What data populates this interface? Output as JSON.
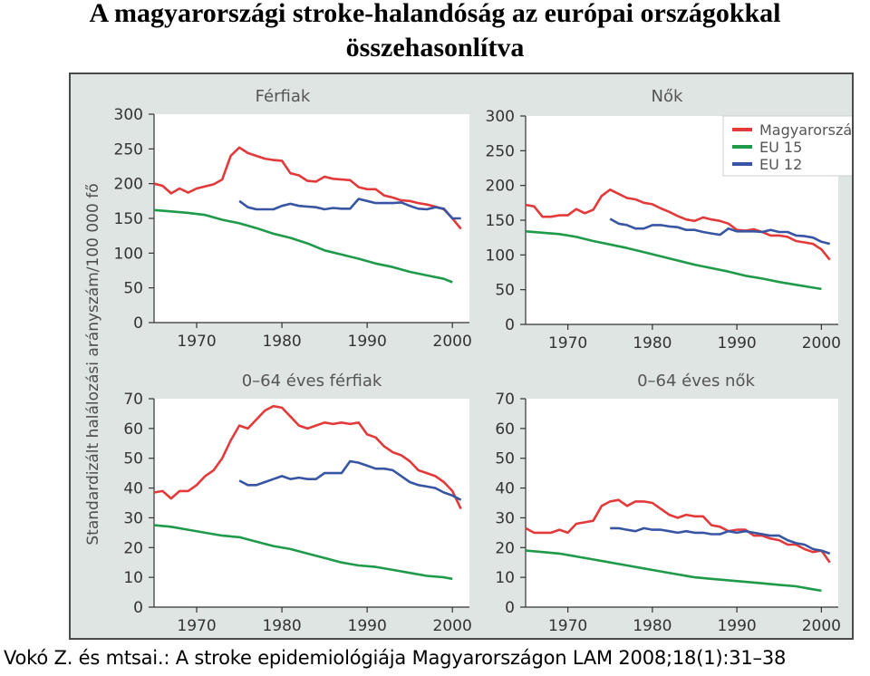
{
  "title": {
    "line1": "A magyarországi stroke-halandóság az európai országokkal",
    "line2": "összehasonlítva"
  },
  "citation": "Vokó Z. és mtsai.: A stroke epidemiológiája Magyarországon LAM 2008;18(1):31–38",
  "colors": {
    "Magyarország": "#e23a3a",
    "EU 15": "#1f9a4a",
    "EU 12": "#3855a3",
    "panel_bg": "#dfe5e2",
    "plot_bg": "#ffffff"
  },
  "chart_data": [
    {
      "type": "line",
      "title": "Férfiak",
      "ylabel": "Standardizált halálozási arányszám/100 000 fő",
      "xlim": [
        1965,
        2002
      ],
      "ylim": [
        0,
        300
      ],
      "xticks": [
        1970,
        1980,
        1990,
        2000
      ],
      "yticks": [
        0,
        50,
        100,
        150,
        200,
        250,
        300
      ],
      "grid": false,
      "series": [
        {
          "name": "Magyarország",
          "x": [
            1965,
            1966,
            1967,
            1968,
            1969,
            1970,
            1971,
            1972,
            1973,
            1974,
            1975,
            1976,
            1977,
            1978,
            1979,
            1980,
            1981,
            1982,
            1983,
            1984,
            1985,
            1986,
            1987,
            1988,
            1989,
            1990,
            1991,
            1992,
            1993,
            1994,
            1995,
            1996,
            1997,
            1998,
            1999,
            2000,
            2001
          ],
          "values": [
            200,
            197,
            186,
            193,
            187,
            193,
            196,
            199,
            206,
            240,
            252,
            244,
            240,
            236,
            234,
            233,
            215,
            212,
            204,
            203,
            210,
            207,
            206,
            205,
            195,
            192,
            192,
            183,
            180,
            176,
            175,
            172,
            170,
            167,
            163,
            150,
            135
          ]
        },
        {
          "name": "EU 15",
          "x": [
            1965,
            1967,
            1969,
            1971,
            1973,
            1975,
            1977,
            1979,
            1981,
            1983,
            1985,
            1987,
            1989,
            1991,
            1993,
            1995,
            1997,
            1999,
            2000
          ],
          "values": [
            162,
            160,
            158,
            155,
            148,
            143,
            136,
            128,
            122,
            114,
            104,
            98,
            92,
            85,
            80,
            73,
            68,
            63,
            58
          ]
        },
        {
          "name": "EU 12",
          "x": [
            1975,
            1976,
            1977,
            1978,
            1979,
            1980,
            1981,
            1982,
            1983,
            1984,
            1985,
            1986,
            1987,
            1988,
            1989,
            1990,
            1991,
            1992,
            1993,
            1994,
            1995,
            1996,
            1997,
            1998,
            1999,
            2000,
            2001
          ],
          "values": [
            175,
            166,
            163,
            163,
            163,
            168,
            171,
            168,
            167,
            166,
            163,
            165,
            164,
            164,
            178,
            175,
            172,
            172,
            172,
            173,
            168,
            164,
            163,
            166,
            164,
            150,
            150
          ]
        }
      ]
    },
    {
      "type": "line",
      "title": "Nők",
      "xlim": [
        1965,
        2002
      ],
      "ylim": [
        0,
        300
      ],
      "xticks": [
        1970,
        1980,
        1990,
        2000
      ],
      "yticks": [
        0,
        50,
        100,
        150,
        200,
        250,
        300
      ],
      "legend": "top-right",
      "series": [
        {
          "name": "Magyarország",
          "x": [
            1965,
            1966,
            1967,
            1968,
            1969,
            1970,
            1971,
            1972,
            1973,
            1974,
            1975,
            1976,
            1977,
            1978,
            1979,
            1980,
            1981,
            1982,
            1983,
            1984,
            1985,
            1986,
            1987,
            1988,
            1989,
            1990,
            1991,
            1992,
            1993,
            1994,
            1995,
            1996,
            1997,
            1998,
            1999,
            2000,
            2001
          ],
          "values": [
            172,
            170,
            155,
            155,
            157,
            157,
            166,
            160,
            165,
            185,
            194,
            188,
            182,
            180,
            175,
            173,
            167,
            162,
            156,
            151,
            149,
            154,
            151,
            149,
            145,
            136,
            135,
            137,
            133,
            128,
            128,
            126,
            120,
            118,
            116,
            108,
            93
          ]
        },
        {
          "name": "EU 15",
          "x": [
            1965,
            1967,
            1969,
            1971,
            1973,
            1975,
            1977,
            1979,
            1981,
            1983,
            1985,
            1987,
            1989,
            1991,
            1993,
            1995,
            1997,
            1999,
            2000
          ],
          "values": [
            134,
            132,
            130,
            126,
            120,
            115,
            110,
            104,
            98,
            92,
            86,
            81,
            76,
            70,
            66,
            61,
            57,
            53,
            51
          ]
        },
        {
          "name": "EU 12",
          "x": [
            1975,
            1976,
            1977,
            1978,
            1979,
            1980,
            1981,
            1982,
            1983,
            1984,
            1985,
            1986,
            1987,
            1988,
            1989,
            1990,
            1991,
            1992,
            1993,
            1994,
            1995,
            1996,
            1997,
            1998,
            1999,
            2000,
            2001
          ],
          "values": [
            152,
            145,
            143,
            138,
            138,
            143,
            143,
            141,
            140,
            136,
            136,
            133,
            131,
            129,
            138,
            134,
            134,
            134,
            133,
            136,
            133,
            133,
            128,
            127,
            125,
            119,
            116
          ]
        }
      ]
    },
    {
      "type": "line",
      "title": "0–64 éves férfiak",
      "xlim": [
        1965,
        2002
      ],
      "ylim": [
        0,
        70
      ],
      "xticks": [
        1970,
        1980,
        1990,
        2000
      ],
      "yticks": [
        0,
        10,
        20,
        30,
        40,
        50,
        60,
        70
      ],
      "series": [
        {
          "name": "Magyarország",
          "x": [
            1965,
            1966,
            1967,
            1968,
            1969,
            1970,
            1971,
            1972,
            1973,
            1974,
            1975,
            1976,
            1977,
            1978,
            1979,
            1980,
            1981,
            1982,
            1983,
            1984,
            1985,
            1986,
            1987,
            1988,
            1989,
            1990,
            1991,
            1992,
            1993,
            1994,
            1995,
            1996,
            1997,
            1998,
            1999,
            2000,
            2001
          ],
          "values": [
            38.5,
            39,
            36.5,
            39,
            39,
            41,
            44,
            46,
            50,
            56,
            61,
            60,
            63,
            66,
            67.5,
            67,
            64,
            61,
            60,
            61,
            62,
            61.5,
            62,
            61.5,
            62,
            58,
            57,
            54,
            52,
            51,
            49,
            46,
            45,
            44,
            42,
            39,
            33
          ]
        },
        {
          "name": "EU 15",
          "x": [
            1965,
            1967,
            1969,
            1971,
            1973,
            1975,
            1977,
            1979,
            1981,
            1983,
            1985,
            1987,
            1989,
            1991,
            1993,
            1995,
            1997,
            1999,
            2000
          ],
          "values": [
            27.5,
            27,
            26,
            25,
            24,
            23.5,
            22,
            20.5,
            19.5,
            18,
            16.5,
            15,
            14,
            13.5,
            12.5,
            11.5,
            10.5,
            10,
            9.5
          ]
        },
        {
          "name": "EU 12",
          "x": [
            1975,
            1976,
            1977,
            1978,
            1979,
            1980,
            1981,
            1982,
            1983,
            1984,
            1985,
            1986,
            1987,
            1988,
            1989,
            1990,
            1991,
            1992,
            1993,
            1994,
            1995,
            1996,
            1997,
            1998,
            1999,
            2000,
            2001
          ],
          "values": [
            42.5,
            41,
            41,
            42,
            43,
            44,
            43,
            43.5,
            43,
            43,
            45,
            45,
            45,
            49,
            48.5,
            47.5,
            46.5,
            46.5,
            46,
            44,
            42,
            41,
            40.5,
            40,
            38.5,
            37.5,
            36
          ]
        }
      ]
    },
    {
      "type": "line",
      "title": "0–64 éves nők",
      "xlim": [
        1965,
        2002
      ],
      "ylim": [
        0,
        70
      ],
      "xticks": [
        1970,
        1980,
        1990,
        2000
      ],
      "yticks": [
        0,
        10,
        20,
        30,
        40,
        50,
        60,
        70
      ],
      "series": [
        {
          "name": "Magyarország",
          "x": [
            1965,
            1966,
            1967,
            1968,
            1969,
            1970,
            1971,
            1972,
            1973,
            1974,
            1975,
            1976,
            1977,
            1978,
            1979,
            1980,
            1981,
            1982,
            1983,
            1984,
            1985,
            1986,
            1987,
            1988,
            1989,
            1990,
            1991,
            1992,
            1993,
            1994,
            1995,
            1996,
            1997,
            1998,
            1999,
            2000,
            2001
          ],
          "values": [
            26.5,
            25,
            25,
            25,
            26,
            25,
            28,
            28.5,
            29,
            34,
            35.5,
            36,
            34,
            35.5,
            35.5,
            35,
            33,
            31,
            30,
            31,
            30.5,
            30.5,
            27.5,
            27,
            25.5,
            26,
            26,
            24,
            24,
            23,
            22.5,
            21,
            21,
            19.5,
            18.5,
            19,
            15
          ]
        },
        {
          "name": "EU 15",
          "x": [
            1965,
            1967,
            1969,
            1971,
            1973,
            1975,
            1977,
            1979,
            1981,
            1983,
            1985,
            1987,
            1989,
            1991,
            1993,
            1995,
            1997,
            1999,
            2000
          ],
          "values": [
            19,
            18.5,
            18,
            17,
            16,
            15,
            14,
            13,
            12,
            11,
            10,
            9.5,
            9,
            8.5,
            8,
            7.5,
            7,
            6,
            5.5
          ]
        },
        {
          "name": "EU 12",
          "x": [
            1975,
            1976,
            1977,
            1978,
            1979,
            1980,
            1981,
            1982,
            1983,
            1984,
            1985,
            1986,
            1987,
            1988,
            1989,
            1990,
            1991,
            1992,
            1993,
            1994,
            1995,
            1996,
            1997,
            1998,
            1999,
            2000,
            2001
          ],
          "values": [
            26.5,
            26.5,
            26,
            25.5,
            26.5,
            26,
            26,
            25.5,
            25,
            25.5,
            25,
            25,
            24.5,
            24.5,
            25.5,
            25,
            25.5,
            25,
            24.5,
            24,
            24,
            22.5,
            21.5,
            21,
            19.5,
            19,
            18
          ]
        }
      ]
    }
  ]
}
